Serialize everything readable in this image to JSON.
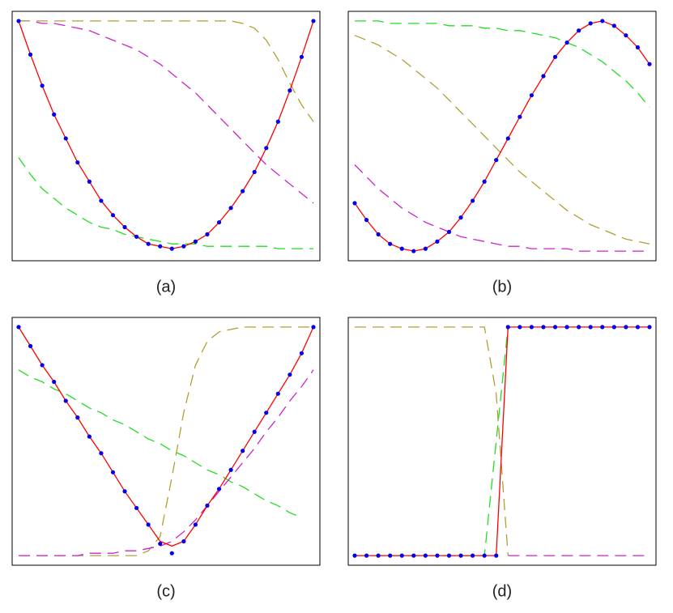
{
  "chart_data": [
    {
      "type": "line",
      "title": "(a)",
      "xlim": [
        0,
        1
      ],
      "ylim": [
        0,
        1
      ],
      "x": [
        0,
        0.04,
        0.08,
        0.12,
        0.16,
        0.2,
        0.24,
        0.28,
        0.32,
        0.36,
        0.4,
        0.44,
        0.48,
        0.52,
        0.56,
        0.6,
        0.64,
        0.68,
        0.72,
        0.76,
        0.8,
        0.84,
        0.88,
        0.92,
        0.96,
        1
      ],
      "series": [
        {
          "color": "#cc22cc",
          "style": "dashed",
          "values": [
            0.98,
            0.98,
            0.97,
            0.97,
            0.96,
            0.95,
            0.94,
            0.92,
            0.9,
            0.88,
            0.86,
            0.83,
            0.8,
            0.76,
            0.72,
            0.68,
            0.63,
            0.58,
            0.53,
            0.48,
            0.43,
            0.38,
            0.34,
            0.3,
            0.26,
            0.22
          ]
        },
        {
          "color": "#b0a030",
          "style": "dashed",
          "values": [
            0.98,
            0.98,
            0.98,
            0.98,
            0.98,
            0.98,
            0.98,
            0.98,
            0.98,
            0.98,
            0.98,
            0.98,
            0.98,
            0.98,
            0.98,
            0.98,
            0.98,
            0.98,
            0.98,
            0.97,
            0.95,
            0.9,
            0.82,
            0.72,
            0.63,
            0.56
          ]
        },
        {
          "color": "#22dd22",
          "style": "dashed",
          "values": [
            0.41,
            0.34,
            0.28,
            0.24,
            0.2,
            0.17,
            0.14,
            0.12,
            0.11,
            0.09,
            0.08,
            0.07,
            0.06,
            0.05,
            0.05,
            0.05,
            0.04,
            0.04,
            0.04,
            0.04,
            0.04,
            0.04,
            0.03,
            0.03,
            0.03,
            0.03
          ]
        },
        {
          "color": "#ff0000",
          "style": "solid",
          "values": [
            0.98,
            0.84,
            0.71,
            0.59,
            0.49,
            0.39,
            0.31,
            0.23,
            0.17,
            0.12,
            0.08,
            0.05,
            0.04,
            0.03,
            0.04,
            0.06,
            0.09,
            0.14,
            0.2,
            0.27,
            0.35,
            0.45,
            0.56,
            0.69,
            0.83,
            0.98
          ]
        },
        {
          "color": "#0000ee",
          "style": "dots",
          "values": [
            0.98,
            0.84,
            0.71,
            0.59,
            0.49,
            0.39,
            0.31,
            0.23,
            0.17,
            0.12,
            0.08,
            0.05,
            0.04,
            0.03,
            0.04,
            0.06,
            0.09,
            0.14,
            0.2,
            0.27,
            0.35,
            0.45,
            0.56,
            0.69,
            0.83,
            0.98
          ]
        }
      ]
    },
    {
      "type": "line",
      "title": "(b)",
      "xlim": [
        0,
        1
      ],
      "ylim": [
        0,
        1
      ],
      "x": [
        0,
        0.04,
        0.08,
        0.12,
        0.16,
        0.2,
        0.24,
        0.28,
        0.32,
        0.36,
        0.4,
        0.44,
        0.48,
        0.52,
        0.56,
        0.6,
        0.64,
        0.68,
        0.72,
        0.76,
        0.8,
        0.84,
        0.88,
        0.92,
        0.96,
        1
      ],
      "series": [
        {
          "color": "#22dd22",
          "style": "dashed",
          "values": [
            0.98,
            0.98,
            0.98,
            0.97,
            0.97,
            0.97,
            0.97,
            0.97,
            0.96,
            0.96,
            0.96,
            0.95,
            0.95,
            0.94,
            0.94,
            0.93,
            0.92,
            0.91,
            0.89,
            0.87,
            0.84,
            0.81,
            0.77,
            0.73,
            0.68,
            0.62
          ]
        },
        {
          "color": "#b0a030",
          "style": "dashed",
          "values": [
            0.92,
            0.9,
            0.88,
            0.85,
            0.82,
            0.78,
            0.74,
            0.7,
            0.65,
            0.6,
            0.55,
            0.5,
            0.45,
            0.4,
            0.35,
            0.31,
            0.27,
            0.23,
            0.19,
            0.16,
            0.13,
            0.11,
            0.09,
            0.07,
            0.06,
            0.05
          ]
        },
        {
          "color": "#cc22cc",
          "style": "dashed",
          "values": [
            0.38,
            0.33,
            0.28,
            0.24,
            0.2,
            0.17,
            0.14,
            0.12,
            0.1,
            0.08,
            0.07,
            0.06,
            0.05,
            0.04,
            0.04,
            0.03,
            0.03,
            0.03,
            0.03,
            0.02,
            0.02,
            0.02,
            0.02,
            0.02,
            0.02,
            0.02
          ]
        },
        {
          "color": "#ff0000",
          "style": "solid",
          "values": [
            0.22,
            0.15,
            0.09,
            0.05,
            0.03,
            0.02,
            0.03,
            0.06,
            0.1,
            0.16,
            0.23,
            0.31,
            0.4,
            0.49,
            0.58,
            0.67,
            0.75,
            0.83,
            0.89,
            0.94,
            0.97,
            0.98,
            0.96,
            0.92,
            0.87,
            0.8
          ]
        },
        {
          "color": "#0000ee",
          "style": "dots",
          "values": [
            0.22,
            0.15,
            0.09,
            0.05,
            0.03,
            0.02,
            0.03,
            0.06,
            0.1,
            0.16,
            0.23,
            0.31,
            0.4,
            0.49,
            0.58,
            0.67,
            0.75,
            0.83,
            0.89,
            0.94,
            0.97,
            0.98,
            0.96,
            0.92,
            0.87,
            0.8
          ]
        }
      ]
    },
    {
      "type": "line",
      "title": "(c)",
      "xlim": [
        0,
        1
      ],
      "ylim": [
        0,
        1
      ],
      "x": [
        0,
        0.04,
        0.08,
        0.12,
        0.16,
        0.2,
        0.24,
        0.28,
        0.32,
        0.36,
        0.4,
        0.44,
        0.48,
        0.52,
        0.56,
        0.6,
        0.64,
        0.68,
        0.72,
        0.76,
        0.8,
        0.84,
        0.88,
        0.92,
        0.96,
        1
      ],
      "series": [
        {
          "color": "#22dd22",
          "style": "dashed",
          "values": [
            0.8,
            0.77,
            0.75,
            0.72,
            0.7,
            0.67,
            0.64,
            0.62,
            0.59,
            0.57,
            0.54,
            0.51,
            0.49,
            0.46,
            0.44,
            0.41,
            0.38,
            0.36,
            0.33,
            0.31,
            0.28,
            0.25,
            0.23,
            0.2,
            0.18,
            null
          ]
        },
        {
          "color": "#b0a030",
          "style": "dashed",
          "values": [
            0.02,
            0.02,
            0.02,
            0.02,
            0.02,
            0.02,
            0.02,
            0.02,
            0.02,
            0.02,
            0.02,
            0.04,
            0.1,
            0.35,
            0.62,
            0.82,
            0.92,
            0.96,
            0.97,
            0.98,
            0.98,
            0.98,
            0.98,
            0.98,
            0.98,
            0.98
          ]
        },
        {
          "color": "#cc22cc",
          "style": "dashed",
          "values": [
            0.02,
            0.02,
            0.02,
            0.02,
            0.02,
            0.02,
            0.03,
            0.03,
            0.03,
            0.04,
            0.04,
            0.05,
            0.06,
            0.08,
            0.12,
            0.17,
            0.23,
            0.29,
            0.35,
            0.41,
            0.47,
            0.54,
            0.6,
            0.67,
            0.73,
            0.8
          ]
        },
        {
          "color": "#ff0000",
          "style": "solid",
          "values": [
            0.98,
            0.9,
            0.82,
            0.75,
            0.67,
            0.6,
            0.52,
            0.45,
            0.37,
            0.29,
            0.22,
            0.15,
            0.08,
            0.06,
            0.08,
            0.15,
            0.23,
            0.3,
            0.38,
            0.46,
            0.54,
            0.62,
            0.7,
            0.78,
            0.87,
            0.98
          ]
        },
        {
          "color": "#0000ee",
          "style": "dots",
          "values": [
            0.98,
            0.9,
            0.82,
            0.75,
            0.67,
            0.6,
            0.52,
            0.45,
            0.37,
            0.29,
            0.22,
            0.15,
            0.07,
            0.03,
            0.08,
            0.15,
            0.23,
            0.3,
            0.38,
            0.46,
            0.54,
            0.62,
            0.7,
            0.78,
            0.87,
            0.98
          ]
        }
      ]
    },
    {
      "type": "line",
      "title": "(d)",
      "xlim": [
        0,
        1
      ],
      "ylim": [
        0,
        1
      ],
      "x": [
        0,
        0.04,
        0.08,
        0.12,
        0.16,
        0.2,
        0.24,
        0.28,
        0.32,
        0.36,
        0.4,
        0.44,
        0.48,
        0.52,
        0.56,
        0.6,
        0.64,
        0.68,
        0.72,
        0.76,
        0.8,
        0.84,
        0.88,
        0.92,
        0.96,
        1
      ],
      "series": [
        {
          "color": "#b0a030",
          "style": "dashed",
          "values": [
            0.98,
            0.98,
            0.98,
            0.98,
            0.98,
            0.98,
            0.98,
            0.98,
            0.98,
            0.98,
            0.98,
            0.98,
            0.7,
            0.02,
            null,
            null,
            null,
            null,
            null,
            null,
            null,
            null,
            null,
            null,
            null,
            null
          ]
        },
        {
          "color": "#cc22cc",
          "style": "dashed",
          "values": [
            null,
            null,
            null,
            null,
            null,
            null,
            null,
            null,
            null,
            null,
            null,
            null,
            null,
            0.02,
            0.02,
            0.02,
            0.02,
            0.02,
            0.02,
            0.02,
            0.02,
            0.02,
            0.02,
            0.02,
            0.02,
            0.02
          ]
        },
        {
          "color": "#22dd22",
          "style": "dashed",
          "values": [
            0.02,
            0.02,
            0.02,
            0.02,
            0.02,
            0.02,
            0.02,
            0.02,
            0.02,
            0.02,
            0.02,
            0.02,
            0.5,
            0.98,
            null,
            null,
            null,
            null,
            null,
            null,
            null,
            null,
            null,
            null,
            null,
            null
          ]
        },
        {
          "color": "#ff0000",
          "style": "solid",
          "values": [
            0.02,
            0.02,
            0.02,
            0.02,
            0.02,
            0.02,
            0.02,
            0.02,
            0.02,
            0.02,
            0.02,
            0.02,
            0.02,
            0.98,
            0.98,
            0.98,
            0.98,
            0.98,
            0.98,
            0.98,
            0.98,
            0.98,
            0.98,
            0.98,
            0.98,
            0.98
          ]
        },
        {
          "color": "#0000ee",
          "style": "dots",
          "values": [
            0.02,
            0.02,
            0.02,
            0.02,
            0.02,
            0.02,
            0.02,
            0.02,
            0.02,
            0.02,
            0.02,
            0.02,
            0.02,
            0.98,
            0.98,
            0.98,
            0.98,
            0.98,
            0.98,
            0.98,
            0.98,
            0.98,
            0.98,
            0.98,
            0.98,
            0.98
          ]
        }
      ]
    }
  ]
}
